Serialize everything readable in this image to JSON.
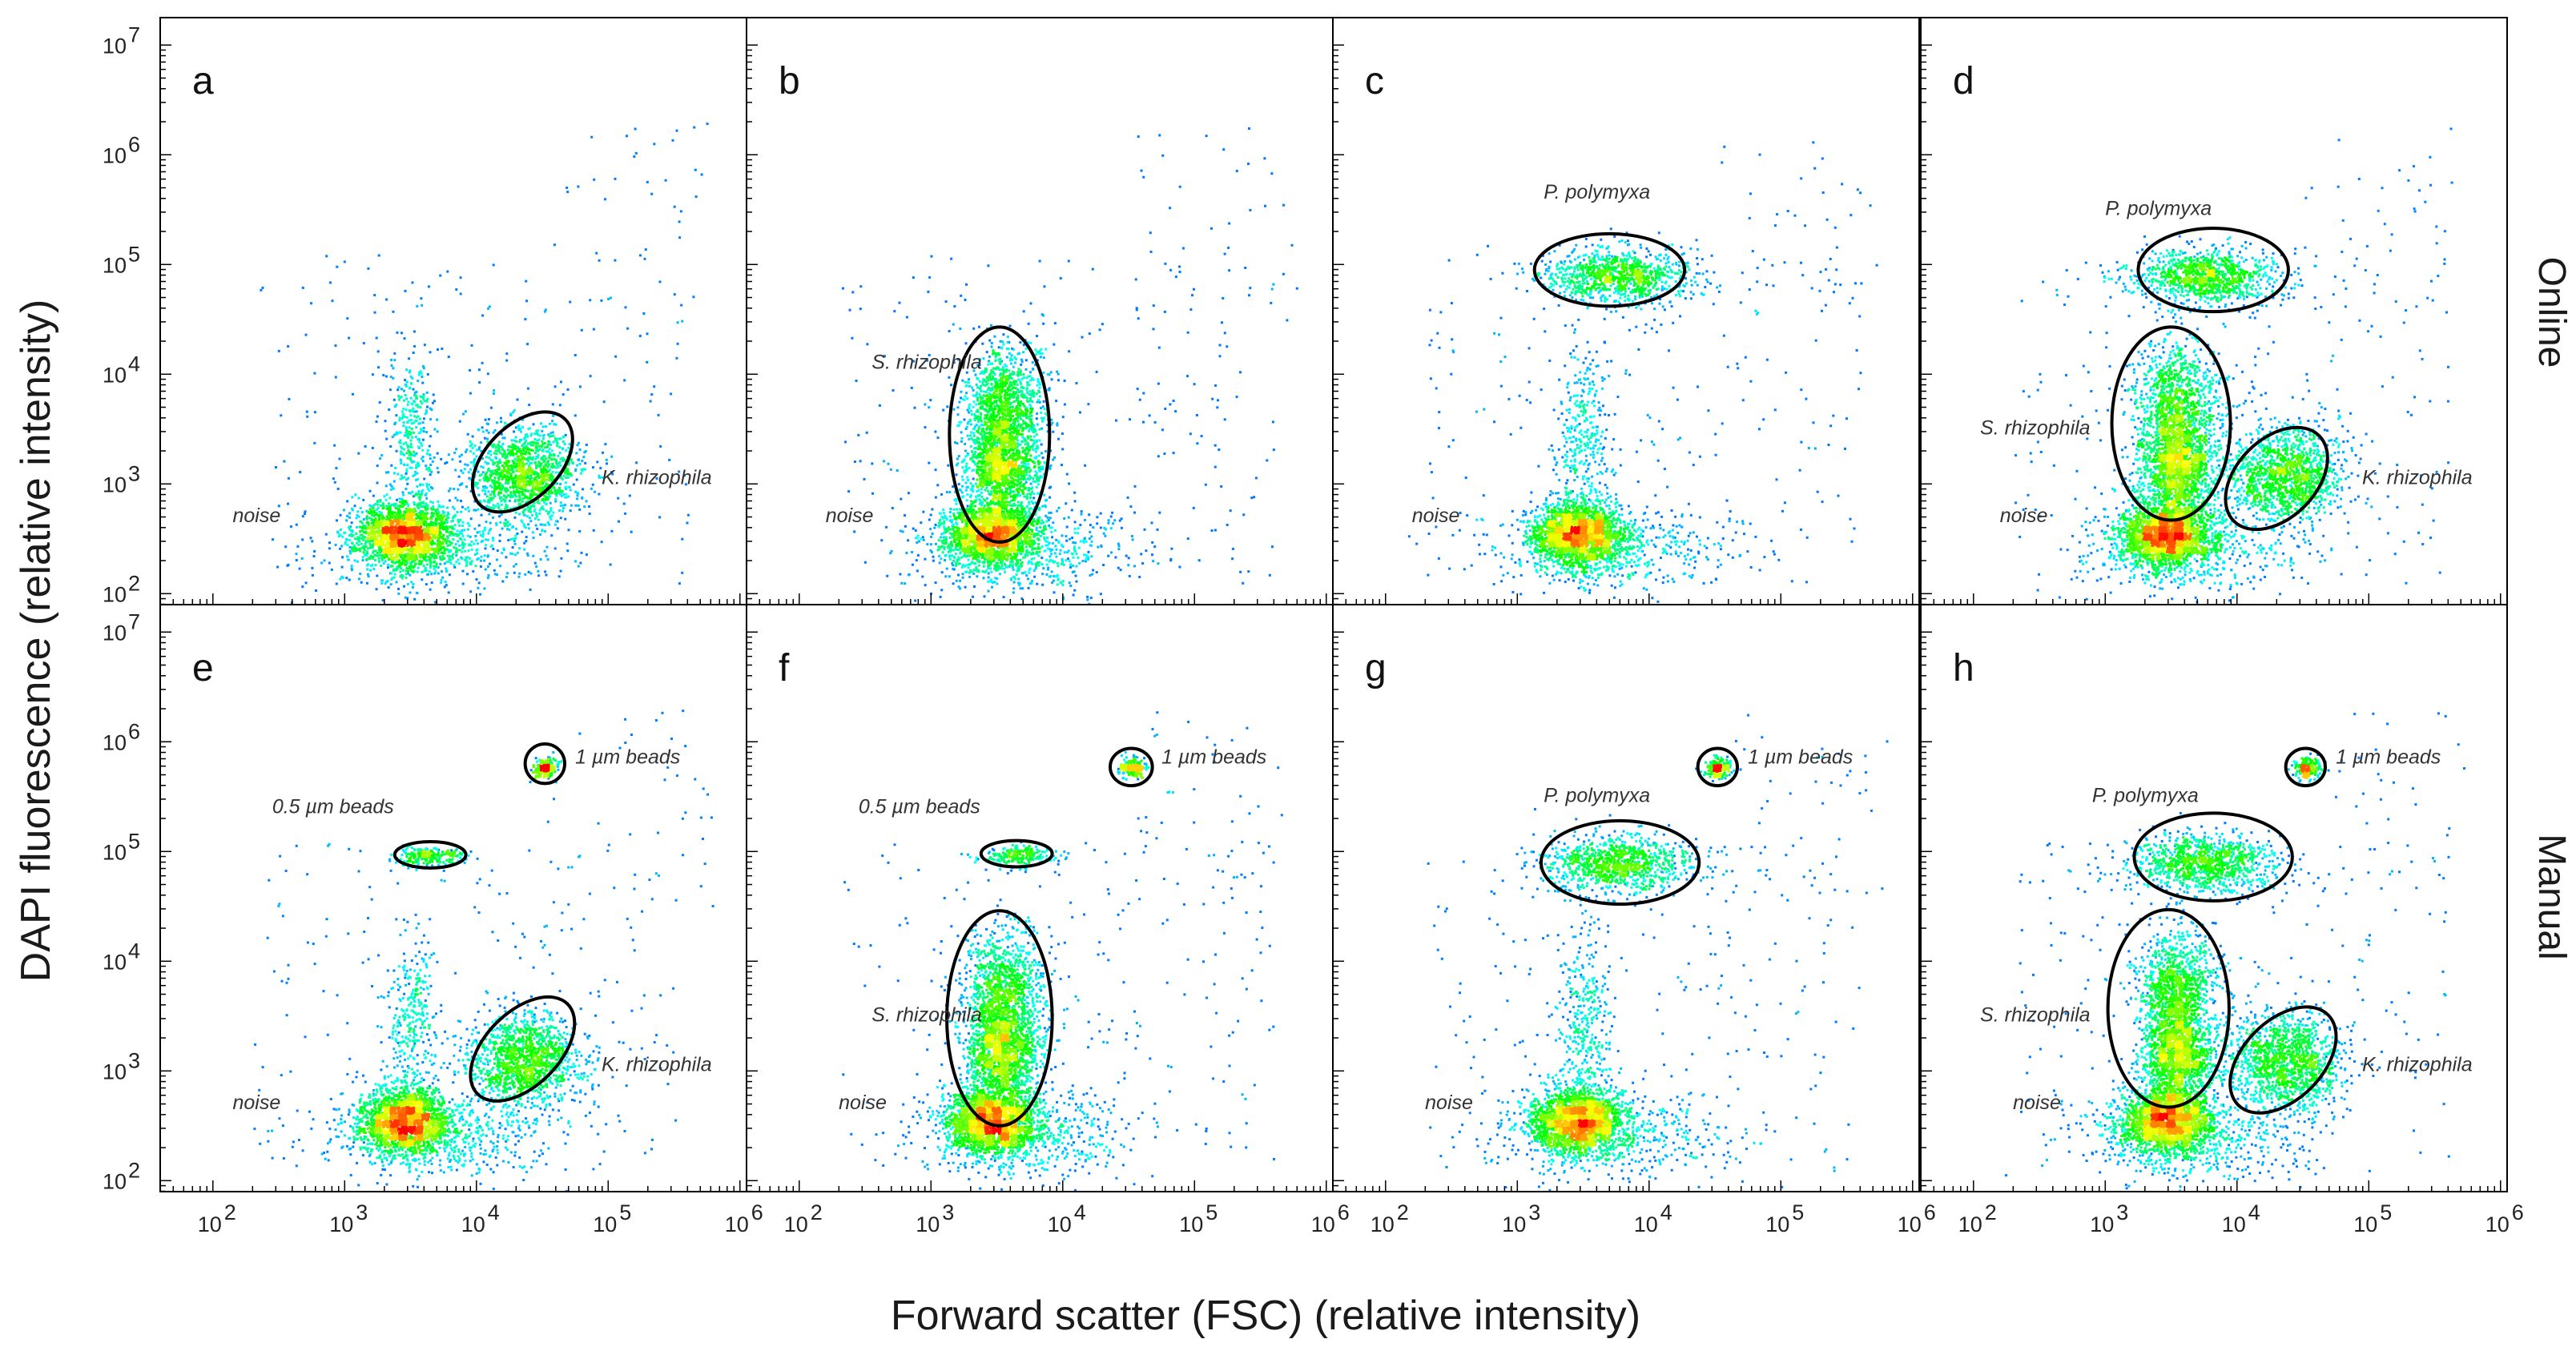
{
  "chart_data": {
    "type": "scatter",
    "subtype": "flow-cytometry density dot plot grid (log-log)",
    "xlabel": "Forward scatter (FSC) (relative intensity)",
    "ylabel": "DAPI fluorescence (relative intensity)",
    "xscale": "log",
    "yscale": "log",
    "xlim_exponent": [
      1.6,
      6.05
    ],
    "ylim_exponent": [
      1.9,
      7.25
    ],
    "x_ticks": [
      {
        "base": "10",
        "exp": "2"
      },
      {
        "base": "10",
        "exp": "3"
      },
      {
        "base": "10",
        "exp": "4"
      },
      {
        "base": "10",
        "exp": "5"
      },
      {
        "base": "10",
        "exp": "6"
      }
    ],
    "y_ticks": [
      {
        "base": "10",
        "exp": "2"
      },
      {
        "base": "10",
        "exp": "3"
      },
      {
        "base": "10",
        "exp": "4"
      },
      {
        "base": "10",
        "exp": "5"
      },
      {
        "base": "10",
        "exp": "6"
      },
      {
        "base": "10",
        "exp": "7"
      }
    ],
    "row_labels": [
      "Online",
      "Manual"
    ],
    "colormap": [
      "#0000ff",
      "#00ffff",
      "#00ff00",
      "#ffff00",
      "#ff0000"
    ],
    "gate_color": "#000000",
    "panels": [
      {
        "letter": "a",
        "row": 0,
        "col": 0,
        "gates": [
          {
            "label": "K. rhizophila",
            "cx": 4.35,
            "cy": 3.2,
            "rx": 0.28,
            "ry": 0.55,
            "rot": 45,
            "label_x": 4.95,
            "label_y": 3.0
          }
        ],
        "free_labels": [
          {
            "label": "noise",
            "x": 2.15,
            "y": 2.65
          }
        ]
      },
      {
        "letter": "b",
        "row": 0,
        "col": 1,
        "gates": [
          {
            "label": "S. rhizophila",
            "cx": 3.52,
            "cy": 3.45,
            "rx": 0.38,
            "ry": 0.98,
            "rot": 0,
            "label_x": 2.55,
            "label_y": 4.05
          }
        ],
        "free_labels": [
          {
            "label": "noise",
            "x": 2.2,
            "y": 2.65
          }
        ]
      },
      {
        "letter": "c",
        "row": 0,
        "col": 2,
        "gates": [
          {
            "label": "P. polymyxa",
            "cx": 3.7,
            "cy": 4.95,
            "rx": 0.57,
            "ry": 0.33,
            "rot": 0,
            "label_x": 3.2,
            "label_y": 5.6
          }
        ],
        "free_labels": [
          {
            "label": "noise",
            "x": 2.2,
            "y": 2.65
          }
        ]
      },
      {
        "letter": "d",
        "row": 0,
        "col": 3,
        "gates": [
          {
            "label": "P. polymyxa",
            "cx": 3.82,
            "cy": 4.95,
            "rx": 0.57,
            "ry": 0.38,
            "rot": 0,
            "label_x": 3.0,
            "label_y": 5.45
          },
          {
            "label": "S. rhizophila",
            "cx": 3.5,
            "cy": 3.55,
            "rx": 0.45,
            "ry": 0.88,
            "rot": 0,
            "label_x": 2.05,
            "label_y": 3.45
          },
          {
            "label": "K. rhizophila",
            "cx": 4.3,
            "cy": 3.05,
            "rx": 0.3,
            "ry": 0.55,
            "rot": 45,
            "label_x": 4.95,
            "label_y": 3.0
          }
        ],
        "free_labels": [
          {
            "label": "noise",
            "x": 2.2,
            "y": 2.65
          }
        ]
      },
      {
        "letter": "e",
        "row": 1,
        "col": 0,
        "gates": [
          {
            "label": "1 µm beads",
            "cx": 4.52,
            "cy": 5.8,
            "rx": 0.15,
            "ry": 0.18,
            "rot": 0,
            "label_x": 4.75,
            "label_y": 5.8
          },
          {
            "label": "0.5 µm beads",
            "cx": 3.65,
            "cy": 4.97,
            "rx": 0.27,
            "ry": 0.12,
            "rot": 0,
            "label_x": 2.45,
            "label_y": 5.35
          },
          {
            "label": "K. rhizophila",
            "cx": 4.35,
            "cy": 3.2,
            "rx": 0.28,
            "ry": 0.58,
            "rot": 45,
            "label_x": 4.95,
            "label_y": 3.0
          }
        ],
        "free_labels": [
          {
            "label": "noise",
            "x": 2.15,
            "y": 2.65
          }
        ]
      },
      {
        "letter": "f",
        "row": 1,
        "col": 1,
        "gates": [
          {
            "label": "1 µm beads",
            "cx": 4.52,
            "cy": 5.77,
            "rx": 0.16,
            "ry": 0.17,
            "rot": 0,
            "label_x": 4.75,
            "label_y": 5.8
          },
          {
            "label": "0.5 µm beads",
            "cx": 3.65,
            "cy": 4.98,
            "rx": 0.27,
            "ry": 0.12,
            "rot": 0,
            "label_x": 2.45,
            "label_y": 5.35
          },
          {
            "label": "S. rhizophila",
            "cx": 3.52,
            "cy": 3.48,
            "rx": 0.4,
            "ry": 0.98,
            "rot": 0,
            "label_x": 2.55,
            "label_y": 3.45
          }
        ],
        "free_labels": [
          {
            "label": "noise",
            "x": 2.3,
            "y": 2.65
          }
        ]
      },
      {
        "letter": "g",
        "row": 1,
        "col": 2,
        "gates": [
          {
            "label": "1 µm beads",
            "cx": 4.52,
            "cy": 5.77,
            "rx": 0.15,
            "ry": 0.17,
            "rot": 0,
            "label_x": 4.75,
            "label_y": 5.8
          },
          {
            "label": "P. polymyxa",
            "cx": 3.78,
            "cy": 4.9,
            "rx": 0.6,
            "ry": 0.38,
            "rot": 0,
            "label_x": 3.2,
            "label_y": 5.45
          }
        ],
        "free_labels": [
          {
            "label": "noise",
            "x": 2.3,
            "y": 2.65
          }
        ]
      },
      {
        "letter": "h",
        "row": 1,
        "col": 3,
        "gates": [
          {
            "label": "1 µm beads",
            "cx": 4.52,
            "cy": 5.77,
            "rx": 0.15,
            "ry": 0.17,
            "rot": 0,
            "label_x": 4.75,
            "label_y": 5.8
          },
          {
            "label": "P. polymyxa",
            "cx": 3.82,
            "cy": 4.95,
            "rx": 0.6,
            "ry": 0.4,
            "rot": 0,
            "label_x": 2.9,
            "label_y": 5.45
          },
          {
            "label": "S. rhizophila",
            "cx": 3.48,
            "cy": 3.57,
            "rx": 0.46,
            "ry": 0.9,
            "rot": 0,
            "label_x": 2.05,
            "label_y": 3.45
          },
          {
            "label": "K. rhizophila",
            "cx": 4.35,
            "cy": 3.1,
            "rx": 0.3,
            "ry": 0.58,
            "rot": 45,
            "label_x": 4.95,
            "label_y": 3.0
          }
        ],
        "free_labels": [
          {
            "label": "noise",
            "x": 2.3,
            "y": 2.65
          }
        ]
      }
    ],
    "populations": {
      "noise": [
        3.45,
        2.55,
        0.18,
        0.15,
        1800
      ],
      "noise_stalk": [
        3.5,
        3.4,
        0.1,
        0.42,
        350
      ],
      "noise_tail": [
        3.7,
        2.4,
        0.45,
        0.2,
        500
      ],
      "k_rhizophila": [
        4.35,
        3.1,
        0.22,
        0.22,
        1300
      ],
      "s_upper": [
        3.55,
        3.75,
        0.16,
        0.28,
        900
      ],
      "s_lower": [
        3.55,
        3.15,
        0.15,
        0.22,
        1100
      ],
      "p_polymyxa": [
        3.75,
        4.9,
        0.28,
        0.13,
        1000
      ],
      "beads_1um": [
        4.52,
        5.77,
        0.05,
        0.05,
        180
      ],
      "beads_05um": [
        3.65,
        4.97,
        0.14,
        0.05,
        220
      ]
    }
  }
}
